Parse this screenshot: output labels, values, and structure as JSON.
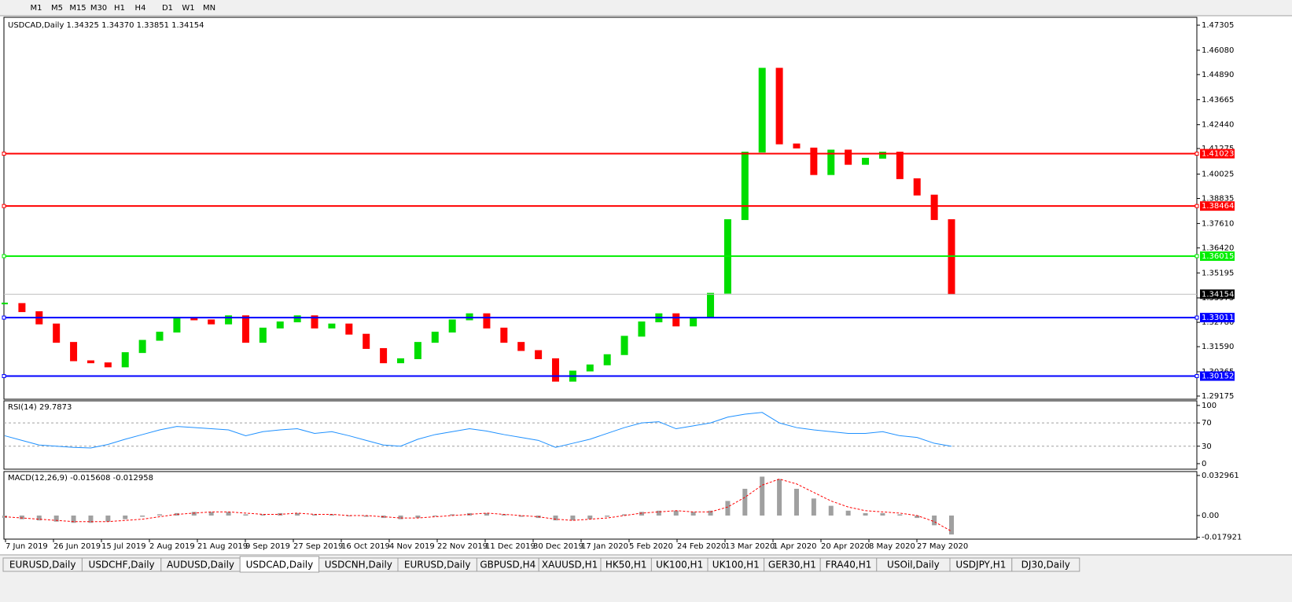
{
  "toolbar": {
    "buttons": [
      "M1",
      "M5",
      "M15",
      "M30",
      "H1",
      "H4",
      "D1",
      "W1",
      "MN"
    ]
  },
  "tabs": {
    "items": [
      "EURUSD,Daily",
      "USDCHF,Daily",
      "AUDUSD,Daily",
      "USDCAD,Daily",
      "USDCNH,Daily",
      "EURUSD,Daily",
      "GBPUSD,H4",
      "XAUUSD,H1",
      "HK50,H1",
      "UK100,H1",
      "UK100,H1",
      "GER30,H1",
      "FRA40,H1",
      "USOil,Daily",
      "USDJPY,H1",
      "DJ30,Daily"
    ],
    "active": 3
  },
  "chart_data": [
    {
      "type": "candlestick",
      "title": "USDCAD,Daily  1.34325 1.34370 1.33851 1.34154",
      "categories": [
        "7 Jun 2019",
        "26 Jun 2019",
        "15 Jul 2019",
        "2 Aug 2019",
        "21 Aug 2019",
        "9 Sep 2019",
        "27 Sep 2019",
        "16 Oct 2019",
        "4 Nov 2019",
        "22 Nov 2019",
        "11 Dec 2019",
        "30 Dec 2019",
        "17 Jan 2020",
        "5 Feb 2020",
        "24 Feb 2020",
        "13 Mar 2020",
        "1 Apr 2020",
        "20 Apr 2020",
        "8 May 2020",
        "27 May 2020"
      ],
      "close": [
        1.337,
        1.333,
        1.327,
        1.318,
        1.309,
        1.308,
        1.306,
        1.313,
        1.319,
        1.323,
        1.33,
        1.329,
        1.327,
        1.331,
        1.318,
        1.325,
        1.328,
        1.331,
        1.325,
        1.327,
        1.322,
        1.315,
        1.308,
        1.31,
        1.318,
        1.323,
        1.329,
        1.332,
        1.325,
        1.318,
        1.314,
        1.31,
        1.299,
        1.304,
        1.307,
        1.312,
        1.321,
        1.328,
        1.332,
        1.326,
        1.33,
        1.342,
        1.378,
        1.411,
        1.452,
        1.415,
        1.413,
        1.4,
        1.412,
        1.405,
        1.408,
        1.411,
        1.398,
        1.39,
        1.378,
        1.3415
      ],
      "up_color": "#00dd00",
      "down_color": "#ff0000",
      "ylim": [
        1.2902,
        1.4769
      ],
      "yticks": [
        1.47305,
        {
          "value": 1.4608,
          "label": "1.46080"
        },
        {
          "value": 1.4489,
          "label": "1.44890"
        },
        1.43665,
        {
          "value": 1.4244,
          "label": "1.42440"
        },
        1.41275,
        1.40025,
        1.38835,
        {
          "value": 1.3761,
          "label": "1.37610"
        },
        {
          "value": 1.3642,
          "label": "1.36420"
        },
        1.35195,
        1.33975,
        {
          "value": 1.3278,
          "label": "1.32780"
        },
        {
          "value": 1.3159,
          "label": "1.31590"
        },
        1.30365,
        1.29175
      ],
      "levels": [
        {
          "value": 1.41023,
          "color": "#ff0000"
        },
        {
          "value": 1.38464,
          "color": "#ff0000"
        },
        {
          "value": 1.36015,
          "color": "#00ee00"
        },
        {
          "value": 1.34154,
          "color": "#000000"
        },
        {
          "value": 1.33011,
          "color": "#0000ff"
        },
        {
          "value": 1.30152,
          "color": "#0000ff"
        }
      ]
    },
    {
      "type": "line",
      "title": "RSI(14) 29.7873",
      "values": [
        48,
        40,
        32,
        30,
        28,
        27,
        33,
        42,
        50,
        58,
        64,
        62,
        60,
        58,
        48,
        55,
        58,
        60,
        52,
        55,
        48,
        40,
        32,
        30,
        42,
        50,
        55,
        60,
        56,
        50,
        45,
        40,
        28,
        35,
        42,
        52,
        62,
        70,
        72,
        60,
        65,
        70,
        80,
        85,
        88,
        70,
        62,
        58,
        55,
        52,
        52,
        55,
        48,
        45,
        35,
        29.8
      ],
      "color": "#1e90ff",
      "ylim": [
        -9.5,
        108
      ],
      "yticks": [
        100,
        70,
        30,
        0
      ],
      "levels": [
        70,
        30
      ]
    },
    {
      "type": "macd",
      "title": "MACD(12,26,9) -0.015608 -0.012958",
      "values": [
        -0.002,
        -0.003,
        -0.004,
        -0.005,
        -0.006,
        -0.006,
        -0.005,
        -0.003,
        -0.001,
        0.001,
        0.002,
        0.003,
        0.003,
        0.003,
        0.001,
        0.001,
        0.002,
        0.002,
        0.001,
        0.001,
        0,
        -0.001,
        -0.002,
        -0.003,
        -0.002,
        0,
        0.001,
        0.002,
        0.002,
        0.001,
        -0.001,
        -0.002,
        -0.004,
        -0.004,
        -0.003,
        -0.001,
        0.001,
        0.003,
        0.004,
        0.004,
        0.003,
        0.004,
        0.012,
        0.022,
        0.032,
        0.03,
        0.022,
        0.014,
        0.008,
        0.004,
        0.002,
        0.002,
        0.001,
        -0.002,
        -0.008,
        -0.0156
      ],
      "signal": [
        -0.001,
        -0.002,
        -0.003,
        -0.004,
        -0.005,
        -0.005,
        -0.005,
        -0.004,
        -0.003,
        -0.001,
        0.001,
        0.002,
        0.003,
        0.003,
        0.002,
        0.001,
        0.001,
        0.002,
        0.001,
        0.001,
        0,
        0,
        -0.001,
        -0.002,
        -0.002,
        -0.001,
        0,
        0.001,
        0.002,
        0.001,
        0,
        -0.001,
        -0.003,
        -0.004,
        -0.003,
        -0.002,
        0,
        0.002,
        0.003,
        0.004,
        0.003,
        0.003,
        0.007,
        0.015,
        0.025,
        0.03,
        0.026,
        0.019,
        0.012,
        0.007,
        0.004,
        0.003,
        0.002,
        0,
        -0.005,
        -0.013
      ],
      "color": "#a0a0a0",
      "signal_color": "#ff0000",
      "ylim": [
        -0.0194,
        0.03619
      ],
      "yticks": [
        0.032961,
        {
          "value": 0,
          "label": "0.00"
        },
        -0.017921
      ]
    }
  ]
}
